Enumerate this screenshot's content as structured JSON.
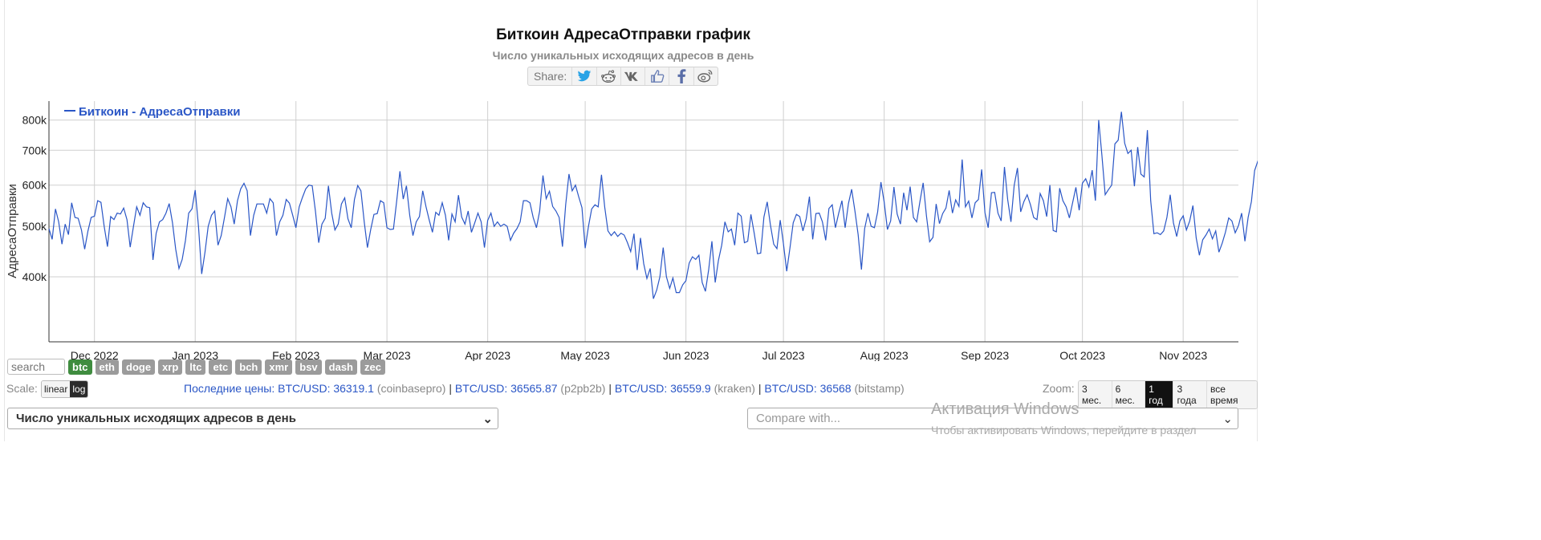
{
  "header": {
    "title": "Биткоин АдресаОтправки график",
    "subtitle": "Число уникальных исходящих адресов в день",
    "share_label": "Share:"
  },
  "share_icons": [
    "twitter-icon",
    "reddit-icon",
    "vk-icon",
    "like-icon",
    "facebook-icon",
    "weibo-icon"
  ],
  "colors": {
    "series": "#2a56c6",
    "coin_active": "#3f8c3f",
    "coin": "#9b9b9b"
  },
  "chart_data": {
    "type": "line",
    "title": "Биткоин АдресаОтправки график",
    "subtitle": "Число уникальных исходящих адресов в день",
    "ylabel": "АдресаОтправки",
    "yscale": "log",
    "ylim": [
      300000,
      870000
    ],
    "yticks": [
      400000,
      500000,
      600000,
      700000,
      800000
    ],
    "yticklabels": [
      "400k",
      "500k",
      "600k",
      "700k",
      "800k"
    ],
    "xlim": [
      "2022-11-17",
      "2023-11-18"
    ],
    "xticks": [
      "2022-12-01",
      "2023-01-01",
      "2023-02-01",
      "2023-03-01",
      "2023-04-01",
      "2023-05-01",
      "2023-06-01",
      "2023-07-01",
      "2023-08-01",
      "2023-09-01",
      "2023-10-01",
      "2023-11-01"
    ],
    "xticklabels": [
      "Dec 2022",
      "Jan 2023",
      "Feb 2023",
      "Mar 2023",
      "Apr 2023",
      "May 2023",
      "Jun 2023",
      "Jul 2023",
      "Aug 2023",
      "Sep 2023",
      "Oct 2023",
      "Nov 2023"
    ],
    "grid": true,
    "legend_position": "top-left",
    "series": [
      {
        "name": "Биткоин - АдресаОтправки",
        "color": "#2a56c6",
        "x_start": "2022-11-17",
        "x_step_days": 1,
        "values": [
          495000,
          472000,
          540000,
          510000,
          462000,
          505000,
          482000,
          555000,
          520000,
          518000,
          492000,
          452000,
          490000,
          520000,
          523000,
          560000,
          556000,
          500000,
          457000,
          522000,
          515000,
          530000,
          528000,
          542000,
          515000,
          456000,
          500000,
          545000,
          525000,
          555000,
          545000,
          543000,
          431000,
          485000,
          510000,
          515000,
          530000,
          553000,
          508000,
          452000,
          415000,
          432000,
          470000,
          530000,
          540000,
          587000,
          500000,
          405000,
          446000,
          500000,
          525000,
          535000,
          460000,
          480000,
          520000,
          565000,
          545000,
          505000,
          560000,
          590000,
          605000,
          585000,
          480000,
          525000,
          552000,
          552000,
          552000,
          530000,
          565000,
          555000,
          480000,
          510000,
          525000,
          563000,
          554000,
          525000,
          497000,
          545000,
          568000,
          590000,
          600000,
          598000,
          535000,
          465000,
          505000,
          518000,
          598000,
          530000,
          492000,
          505000,
          552000,
          567000,
          517000,
          497000,
          563000,
          599000,
          585000,
          510000,
          455000,
          493000,
          527000,
          529000,
          560000,
          555000,
          497000,
          493000,
          494000,
          560000,
          638000,
          564000,
          598000,
          525000,
          480000,
          510000,
          522000,
          585000,
          546000,
          514000,
          487000,
          532000,
          525000,
          555000,
          525000,
          470000,
          528000,
          510000,
          574000,
          521000,
          505000,
          535000,
          487000,
          507000,
          530000,
          510000,
          455000,
          513000,
          530000,
          500000,
          510000,
          500000,
          505000,
          500000,
          470000,
          485000,
          495000,
          510000,
          560000,
          560000,
          555000,
          520000,
          497000,
          535000,
          626000,
          565000,
          584000,
          546000,
          535000,
          520000,
          457000,
          550000,
          630000,
          585000,
          600000,
          570000,
          543000,
          454000,
          500000,
          540000,
          550000,
          545000,
          628000,
          545000,
          490000,
          480000,
          488000,
          478000,
          485000,
          481000,
          465000,
          447000,
          484000,
          412000,
          475000,
          424000,
          397000,
          415000,
          363000,
          377000,
          400000,
          455000,
          400000,
          380000,
          398000,
          373000,
          373000,
          386000,
          393000,
          425000,
          437000,
          432000,
          440000,
          390000,
          375000,
          413000,
          468000,
          390000,
          430000,
          460000,
          510000,
          488000,
          494000,
          460000,
          530000,
          523000,
          465000,
          468000,
          527000,
          485000,
          443000,
          444000,
          521000,
          557000,
          503000,
          462000,
          453000,
          514000,
          463000,
          410000,
          454000,
          508000,
          527000,
          522000,
          490000,
          517000,
          570000,
          472000,
          529000,
          530000,
          510000,
          470000,
          541000,
          550000,
          497000,
          530000,
          560000,
          497000,
          553000,
          589000,
          535000,
          482000,
          413000,
          495000,
          530000,
          500000,
          497000,
          533000,
          608000,
          557000,
          493000,
          512000,
          595000,
          528000,
          505000,
          580000,
          537000,
          596000,
          520000,
          510000,
          558000,
          606000,
          524000,
          467000,
          476000,
          552000,
          506000,
          529000,
          542000,
          586000,
          530000,
          562000,
          546000,
          672000,
          545000,
          559000,
          519000,
          555000,
          563000,
          643000,
          531000,
          497000,
          580000,
          581000,
          530000,
          512000,
          650000,
          563000,
          510000,
          599000,
          647000,
          533000,
          558000,
          575000,
          550000,
          520000,
          515000,
          578000,
          560000,
          522000,
          600000,
          491000,
          488000,
          592000,
          560000,
          545000,
          519000,
          556000,
          594000,
          537000,
          605000,
          617000,
          595000,
          641000,
          560000,
          800000,
          685000,
          575000,
          588000,
          600000,
          720000,
          732000,
          830000,
          722000,
          690000,
          700000,
          597000,
          710000,
          630000,
          622000,
          765000,
          560000,
          484000,
          486000,
          482000,
          490000,
          520000,
          575000,
          508000,
          478000,
          512000,
          524000,
          492000,
          512000,
          548000,
          475000,
          440000,
          471000,
          481000,
          494000,
          473000,
          490000,
          446000,
          464000,
          487000,
          519000,
          512000,
          486000,
          501000,
          530000,
          468000,
          520000,
          558000,
          640000,
          668000,
          606000,
          622000,
          689000,
          550000,
          615000,
          620000,
          614000,
          620000,
          562000,
          630000,
          560000,
          750000,
          686000,
          513000,
          512000,
          620000,
          614000,
          605000,
          670000,
          686000,
          431000,
          470000,
          428000,
          435000
        ]
      }
    ]
  },
  "controls": {
    "search_placeholder": "search",
    "coins": [
      "btc",
      "eth",
      "doge",
      "xrp",
      "ltc",
      "etc",
      "bch",
      "xmr",
      "bsv",
      "dash",
      "zec"
    ],
    "active_coin": "btc",
    "scale_label": "Scale:",
    "scale_options": [
      "linear",
      "log"
    ],
    "active_scale": "log",
    "prices_label": "Последние цены:",
    "prices": [
      {
        "pair": "BTC/USD: 36319.1",
        "exchange": "(coinbasepro)"
      },
      {
        "pair": "BTC/USD: 36565.87",
        "exchange": "(p2pb2b)"
      },
      {
        "pair": "BTC/USD: 36559.9",
        "exchange": "(kraken)"
      },
      {
        "pair": "BTC/USD: 36568",
        "exchange": "(bitstamp)"
      }
    ],
    "zoom_label": "Zoom:",
    "zoom_options": [
      "3 мес.",
      "6 мес.",
      "1 год",
      "3 года",
      "все время"
    ],
    "active_zoom": "1 год",
    "metric_select_value": "Число уникальных исходящих адресов в день",
    "compare_placeholder": "Compare with..."
  },
  "watermark": {
    "line1": "Активация Windows",
    "line2": "Чтобы активировать Windows, перейдите в раздел"
  }
}
